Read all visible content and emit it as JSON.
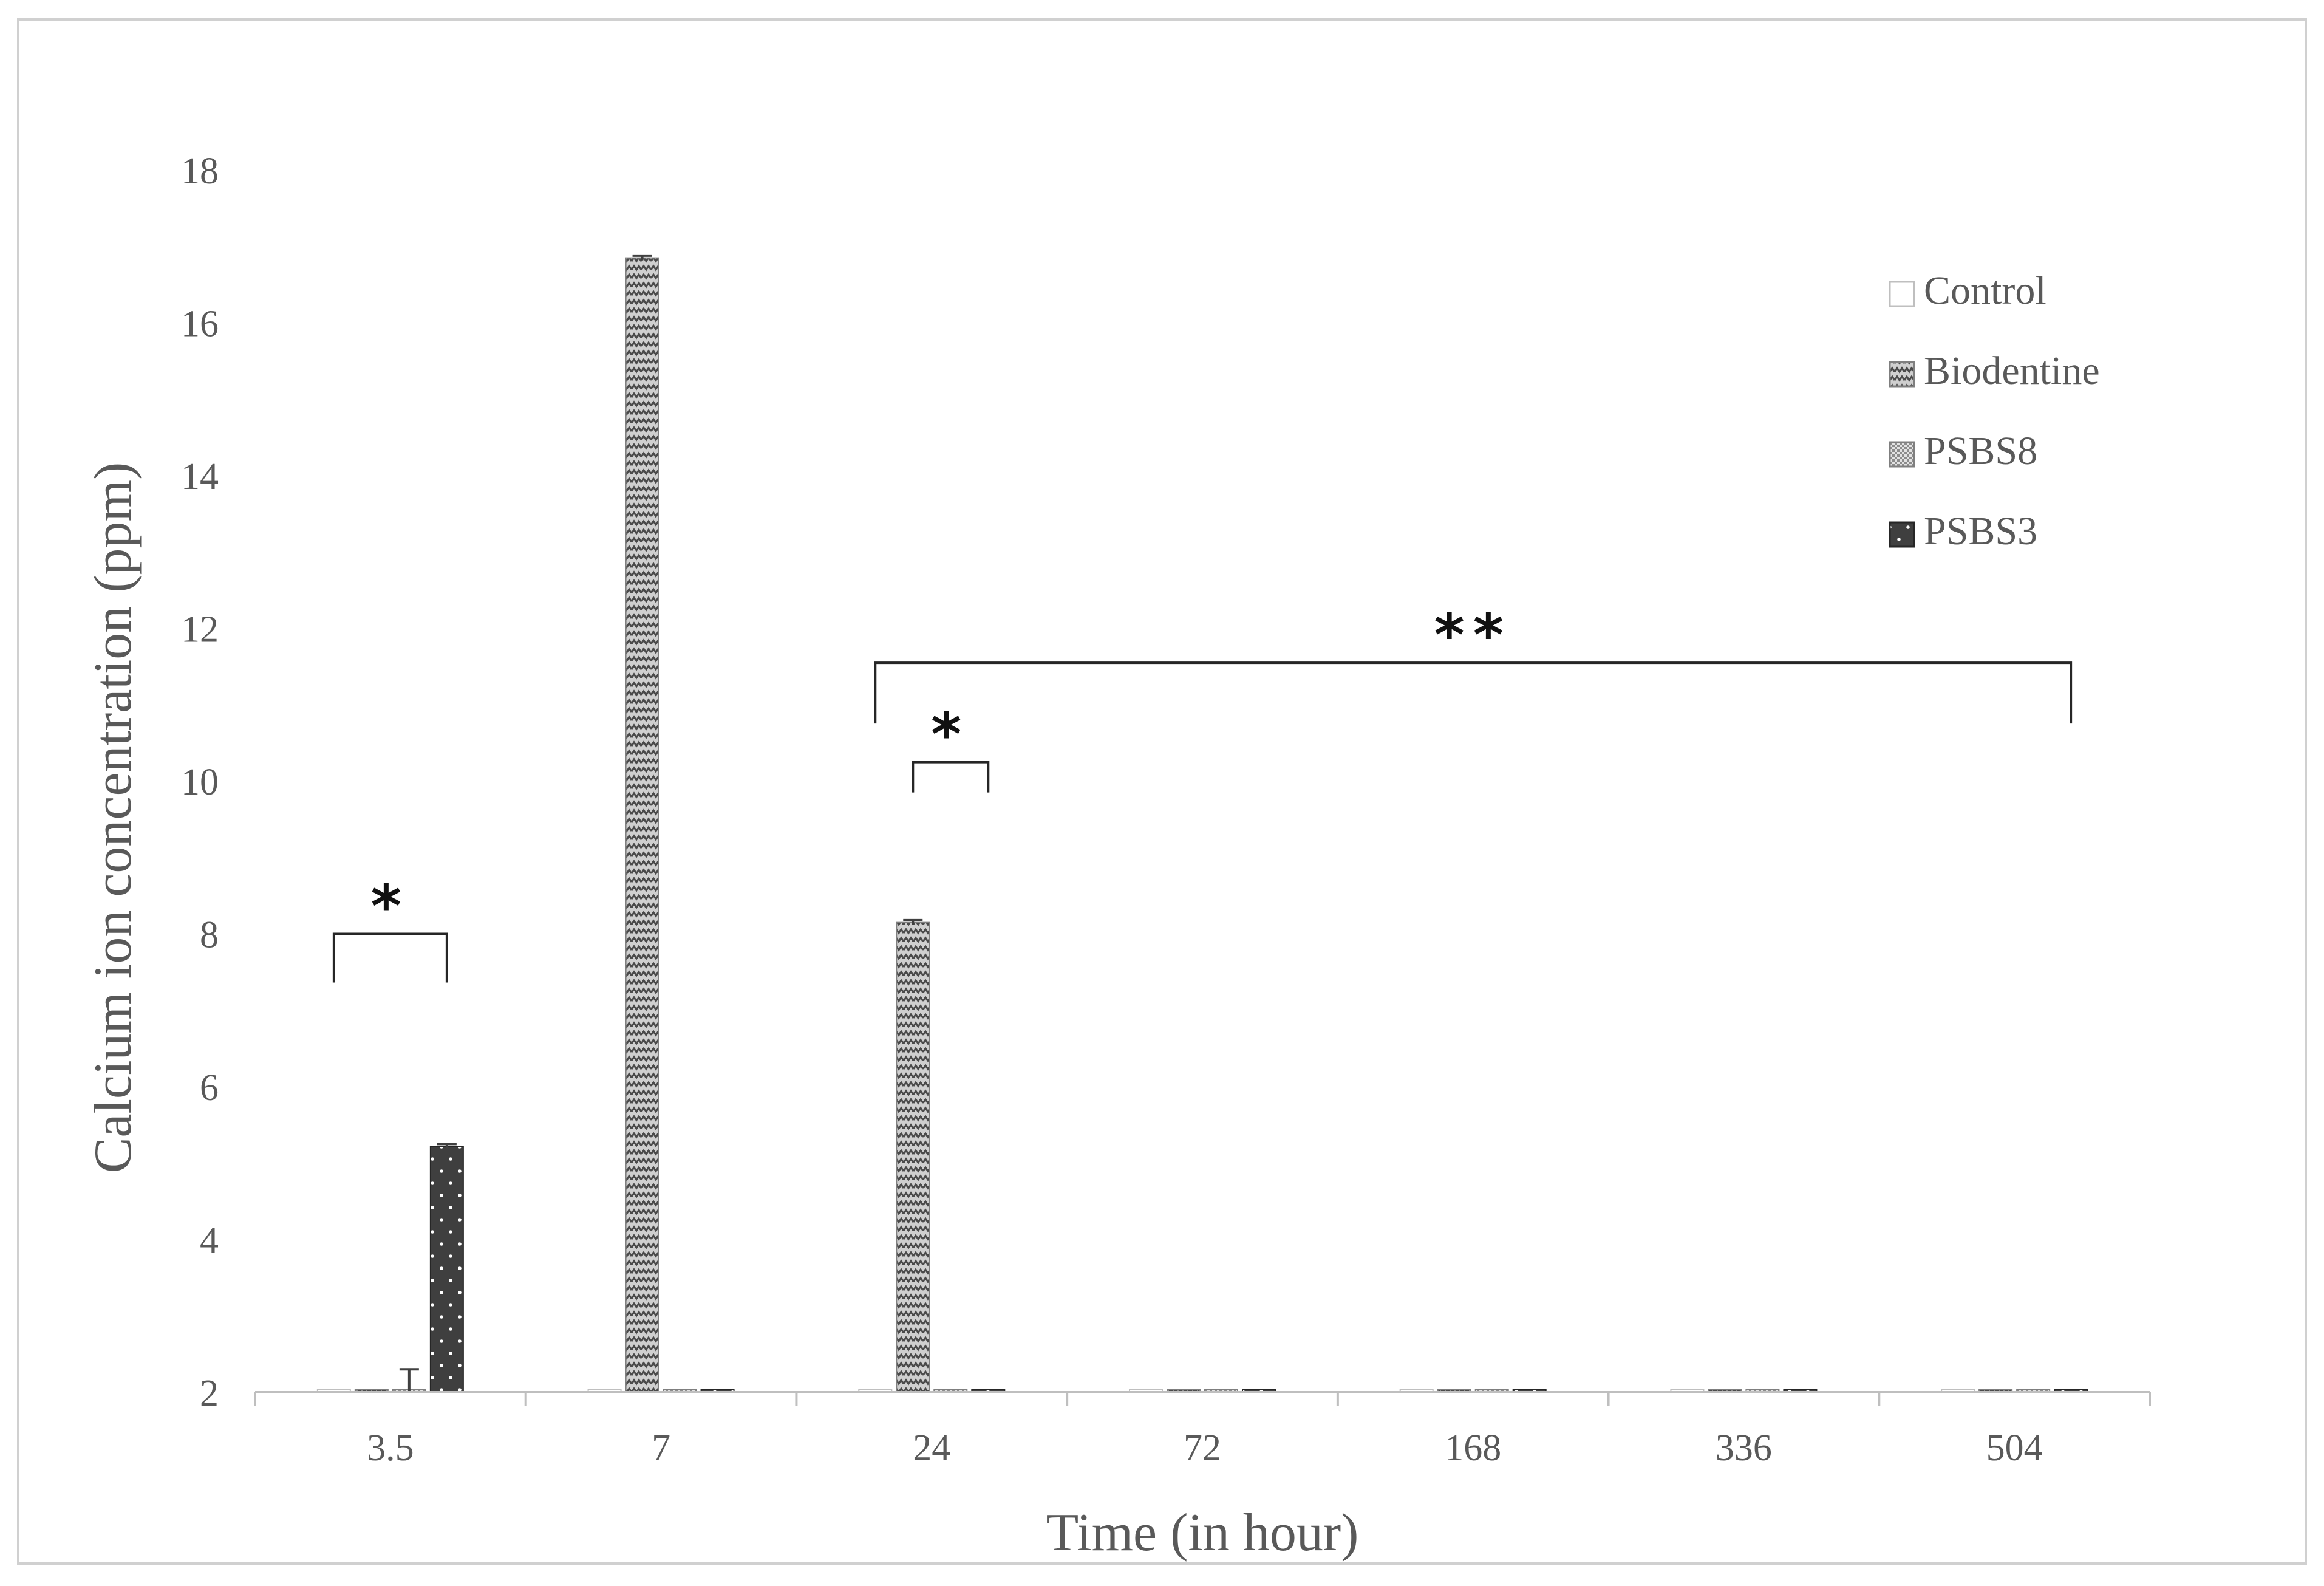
{
  "chart_data": {
    "type": "bar",
    "title": "",
    "xlabel": "Time (in hour)",
    "ylabel": "Calcium ion concentration (ppm)",
    "categories": [
      "3.5",
      "7",
      "24",
      "72",
      "168",
      "336",
      "504"
    ],
    "yticks": [
      "2",
      "4",
      "6",
      "8",
      "10",
      "12",
      "14",
      "16",
      "18"
    ],
    "ylim": [
      2,
      18
    ],
    "grid": false,
    "legend_position": "top-right",
    "series": [
      {
        "name": "Control",
        "values": [
          2.0,
          2.0,
          2.0,
          2.0,
          2.0,
          2.0,
          2.0
        ],
        "error": [
          0,
          0,
          0,
          0,
          0,
          0,
          0
        ],
        "fill": "#ffffff",
        "stroke": "#bfbfbf",
        "pattern": "none"
      },
      {
        "name": "Biodentine",
        "values": [
          2.0,
          16.85,
          8.15,
          2.0,
          2.0,
          2.0,
          2.0
        ],
        "error": [
          0,
          0.03,
          0.03,
          0,
          0,
          0,
          0
        ],
        "fill": "#c8c8c8",
        "stroke": "#7f7f7f",
        "pattern": "zigzag"
      },
      {
        "name": "PSBS8",
        "values": [
          2.02,
          2.0,
          2.0,
          2.0,
          2.0,
          2.0,
          2.0
        ],
        "error": [
          0.28,
          0,
          0,
          0,
          0,
          0,
          0
        ],
        "fill": "#d9d9d9",
        "stroke": "#7f7f7f",
        "pattern": "checker"
      },
      {
        "name": "PSBS3",
        "values": [
          5.22,
          2.0,
          2.0,
          2.0,
          2.0,
          2.0,
          2.0
        ],
        "error": [
          0.03,
          0,
          0,
          0,
          0,
          0,
          0
        ],
        "fill": "#3f3f3f",
        "stroke": "#262626",
        "pattern": "dots"
      }
    ],
    "annotations": [
      {
        "text": "*",
        "from_category": 0,
        "to_category": 0,
        "from_series": 0,
        "to_series": 3,
        "level": 8.0
      },
      {
        "text": "*",
        "from_category": 2,
        "to_category": 2,
        "from_series": 1,
        "to_series": 3,
        "level": 10.25
      },
      {
        "text": "**",
        "from_category": 2,
        "to_category": 6,
        "from_series": 0,
        "to_series": 3,
        "level": 11.55
      }
    ]
  }
}
